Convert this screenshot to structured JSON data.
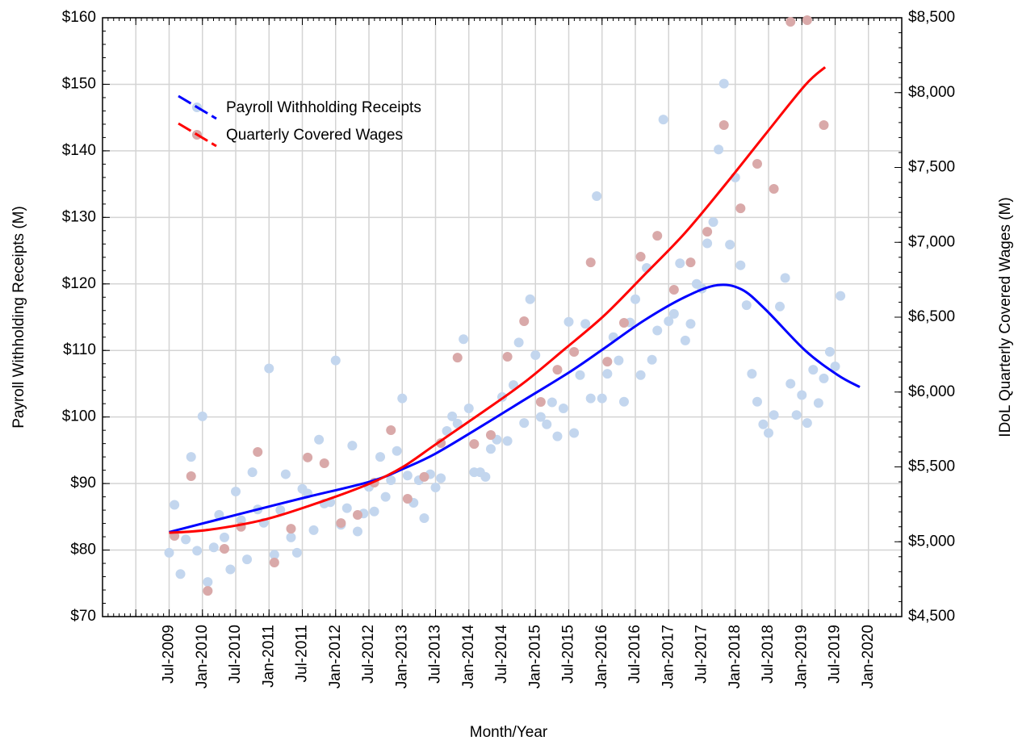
{
  "chart_data": {
    "type": "scatter",
    "xlabel": "Month/Year",
    "ylabel": "Payroll Withholding Receipts (M)",
    "y2label": "IDoL Quarterly Covered Wages (M)",
    "xlim": [
      2008.5,
      2020.5
    ],
    "ylim": [
      70,
      160
    ],
    "y2lim": [
      4500,
      8500
    ],
    "grid": true,
    "legend": "upper left",
    "xticks": [
      {
        "value": 2009,
        "label": null
      },
      {
        "value": 2009.5,
        "label": "Jul-2009"
      },
      {
        "value": 2010,
        "label": "Jan-2010"
      },
      {
        "value": 2010.5,
        "label": "Jul-2010"
      },
      {
        "value": 2011,
        "label": "Jan-2011"
      },
      {
        "value": 2011.5,
        "label": "Jul-2011"
      },
      {
        "value": 2012,
        "label": "Jan-2012"
      },
      {
        "value": 2012.5,
        "label": "Jul-2012"
      },
      {
        "value": 2013,
        "label": "Jan-2013"
      },
      {
        "value": 2013.5,
        "label": "Jul-2013"
      },
      {
        "value": 2014,
        "label": "Jan-2014"
      },
      {
        "value": 2014.5,
        "label": "Jul-2014"
      },
      {
        "value": 2015,
        "label": "Jan-2015"
      },
      {
        "value": 2015.5,
        "label": "Jul-2015"
      },
      {
        "value": 2016,
        "label": "Jan-2016"
      },
      {
        "value": 2016.5,
        "label": "Jul-2016"
      },
      {
        "value": 2017,
        "label": "Jan-2017"
      },
      {
        "value": 2017.5,
        "label": "Jul-2017"
      },
      {
        "value": 2018,
        "label": "Jan-2018"
      },
      {
        "value": 2018.5,
        "label": "Jul-2018"
      },
      {
        "value": 2019,
        "label": "Jan-2019"
      },
      {
        "value": 2019.5,
        "label": "Jul-2019"
      },
      {
        "value": 2020,
        "label": "Jan-2020"
      }
    ],
    "yticks": [
      {
        "value": 70,
        "label": "$70"
      },
      {
        "value": 80,
        "label": "$80"
      },
      {
        "value": 90,
        "label": "$90"
      },
      {
        "value": 100,
        "label": "$100"
      },
      {
        "value": 110,
        "label": "$110"
      },
      {
        "value": 120,
        "label": "$120"
      },
      {
        "value": 130,
        "label": "$130"
      },
      {
        "value": 140,
        "label": "$140"
      },
      {
        "value": 150,
        "label": "$150"
      },
      {
        "value": 160,
        "label": "$160"
      }
    ],
    "y2ticks": [
      {
        "value": 4500,
        "label": "$4,500"
      },
      {
        "value": 5000,
        "label": "$5,000"
      },
      {
        "value": 5500,
        "label": "$5,500"
      },
      {
        "value": 6000,
        "label": "$6,000"
      },
      {
        "value": 6500,
        "label": "$6,500"
      },
      {
        "value": 7000,
        "label": "$7,000"
      },
      {
        "value": 7500,
        "label": "$7,500"
      },
      {
        "value": 8000,
        "label": "$8,000"
      },
      {
        "value": 8500,
        "label": "$8,500"
      }
    ],
    "series": [
      {
        "type": "scatter",
        "color": "#c3d6ee",
        "x": [
          2009.5,
          2009.58,
          2009.67,
          2009.75,
          2009.83,
          2009.92,
          2010,
          2010.08,
          2010.17,
          2010.25,
          2010.33,
          2010.42,
          2010.5,
          2010.58,
          2010.67,
          2010.75,
          2010.83,
          2010.92,
          2011,
          2011.08,
          2011.17,
          2011.25,
          2011.33,
          2011.42,
          2011.5,
          2011.58,
          2011.67,
          2011.75,
          2011.83,
          2011.92,
          2012,
          2012.08,
          2012.17,
          2012.25,
          2012.33,
          2012.42,
          2012.5,
          2012.58,
          2012.67,
          2012.75,
          2012.83,
          2012.92,
          2013,
          2013.08,
          2013.17,
          2013.25,
          2013.33,
          2013.42,
          2013.5,
          2013.58,
          2013.67,
          2013.75,
          2013.83,
          2013.92,
          2014,
          2014.08,
          2014.17,
          2014.25,
          2014.33,
          2014.42,
          2014.5,
          2014.58,
          2014.67,
          2014.75,
          2014.83,
          2014.92,
          2015,
          2015.08,
          2015.17,
          2015.25,
          2015.33,
          2015.42,
          2015.5,
          2015.58,
          2015.67,
          2015.75,
          2015.83,
          2015.92,
          2016,
          2016.08,
          2016.17,
          2016.25,
          2016.33,
          2016.42,
          2016.5,
          2016.58,
          2016.67,
          2016.75,
          2016.83,
          2016.92,
          2017,
          2017.08,
          2017.17,
          2017.25,
          2017.33,
          2017.42,
          2017.5,
          2017.58,
          2017.67,
          2017.75,
          2017.83,
          2017.92,
          2018,
          2018.08,
          2018.17,
          2018.25,
          2018.33,
          2018.42,
          2018.5,
          2018.58,
          2018.67,
          2018.75,
          2018.83,
          2018.92,
          2019,
          2019.08,
          2019.17,
          2019.25,
          2019.33,
          2019.42,
          2019.5,
          2019.58
        ],
        "values": [
          79.6,
          86.8,
          76.4,
          81.6,
          94.0,
          79.9,
          100.1,
          75.2,
          80.4,
          85.3,
          81.9,
          77.1,
          88.8,
          84.5,
          78.6,
          91.7,
          86.1,
          84.1,
          107.3,
          79.3,
          86.0,
          91.4,
          81.9,
          79.6,
          89.2,
          88.5,
          83.0,
          96.6,
          87.0,
          87.2,
          108.5,
          83.8,
          86.3,
          95.7,
          82.8,
          85.5,
          89.5,
          85.8,
          94.0,
          88.0,
          90.5,
          94.9,
          102.8,
          91.2,
          87.1,
          90.5,
          84.8,
          91.4,
          89.4,
          90.8,
          97.9,
          100.1,
          99.0,
          111.7,
          101.3,
          91.7,
          91.7,
          91.0,
          95.2,
          96.6,
          103.0,
          96.4,
          104.8,
          111.2,
          99.1,
          117.7,
          109.3,
          100.0,
          98.9,
          102.2,
          97.1,
          101.3,
          114.3,
          97.6,
          106.3,
          114.0,
          102.8,
          133.2,
          102.8,
          106.5,
          112.0,
          108.5,
          102.3,
          114.2,
          117.7,
          106.3,
          122.4,
          108.6,
          113.0,
          144.7,
          114.4,
          115.5,
          123.1,
          111.5,
          114.0,
          120.0,
          119.3,
          126.1,
          129.3,
          140.2,
          150.1,
          125.9,
          136.0,
          122.8,
          116.8,
          106.5,
          102.3,
          98.9,
          97.6,
          100.3,
          116.6,
          120.9,
          105.0,
          100.3,
          103.3,
          99.1,
          107.1,
          102.1,
          105.8,
          109.8,
          107.6,
          118.2
        ]
      },
      {
        "type": "scatter",
        "color": "#d9a9a9",
        "axis": "y2",
        "x": [
          2009.58,
          2009.83,
          2010.08,
          2010.33,
          2010.58,
          2010.83,
          2011.08,
          2011.33,
          2011.58,
          2011.83,
          2012.08,
          2012.33,
          2012.58,
          2012.83,
          2013.08,
          2013.33,
          2013.58,
          2013.83,
          2014.08,
          2014.33,
          2014.58,
          2014.83,
          2015.08,
          2015.33,
          2015.58,
          2015.83,
          2016.08,
          2016.33,
          2016.58,
          2016.83,
          2017.08,
          2017.33,
          2017.58,
          2017.83,
          2018.08,
          2018.33,
          2018.58,
          2018.83,
          2019.08,
          2019.33
        ],
        "values": [
          5039,
          5438,
          4672,
          4953,
          5100,
          5600,
          4861,
          5087,
          5563,
          5524,
          5125,
          5179,
          5395,
          5745,
          5287,
          5433,
          5659,
          6230,
          5653,
          5713,
          6236,
          6473,
          5934,
          6149,
          6268,
          6866,
          6203,
          6462,
          6904,
          7044,
          6683,
          6866,
          7071,
          7783,
          7227,
          7524,
          7357,
          8473,
          8484,
          7783
        ]
      },
      {
        "type": "line",
        "name": "Payroll Withholding Receipts",
        "color": "#0000ff",
        "x": [
          2009.5,
          2010.59,
          2011.5,
          2012.52,
          2013.01,
          2013.5,
          2014.22,
          2014.82,
          2015.52,
          2016.03,
          2016.63,
          2017.24,
          2017.72,
          2018.09,
          2018.45,
          2019.05,
          2019.54,
          2019.87
        ],
        "values": [
          82.7,
          85.5,
          87.8,
          90.3,
          92.2,
          94.5,
          98.8,
          102.5,
          106.8,
          110.3,
          114.5,
          118.0,
          119.8,
          119.2,
          116.2,
          110.0,
          106.3,
          104.5
        ]
      },
      {
        "type": "line",
        "name": "Quarterly Covered Wages",
        "color": "#ff0000",
        "axis": "y2",
        "x": [
          2009.5,
          2010.1,
          2010.95,
          2011.8,
          2012.52,
          2013.01,
          2013.5,
          2014.22,
          2014.82,
          2015.42,
          2016.03,
          2016.63,
          2017.24,
          2017.84,
          2018.45,
          2019.05,
          2019.35
        ],
        "values": [
          5060,
          5080,
          5150,
          5270,
          5390,
          5500,
          5650,
          5870,
          6060,
          6280,
          6510,
          6780,
          7060,
          7380,
          7720,
          8050,
          8170
        ]
      }
    ]
  }
}
